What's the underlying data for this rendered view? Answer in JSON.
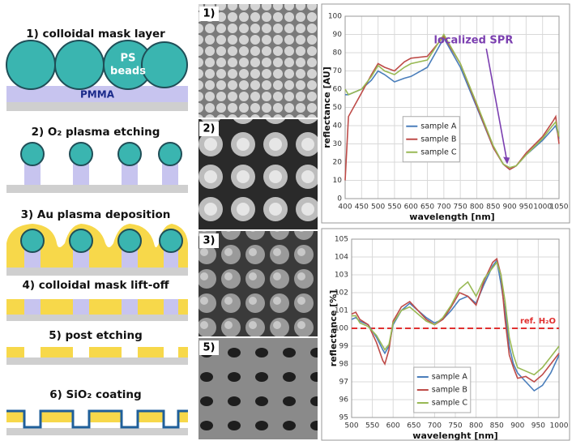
{
  "schematic": {
    "steps": [
      "1) colloidal mask layer",
      "2) O₂ plasma etching",
      "3) Au plasma deposition",
      "4) colloidal mask lift-off",
      "5) post etching",
      "6) SiO₂ coating"
    ],
    "bead_label": [
      "PS",
      "beads"
    ],
    "layer_label": "PMMA"
  },
  "sem_panels": [
    "1)",
    "2)",
    "3)",
    "5)"
  ],
  "chart_data": [
    {
      "type": "line",
      "x_label": "wavelength [nm]",
      "y_label": "reflectance [AU]",
      "annotation": "localized SPR",
      "x": [
        400,
        410,
        450,
        480,
        500,
        520,
        550,
        580,
        600,
        650,
        700,
        750,
        800,
        850,
        880,
        900,
        920,
        950,
        1000,
        1030,
        1040,
        1050
      ],
      "series": [
        {
          "name": "sample A",
          "color": "#4a7ebb",
          "values": [
            57,
            57,
            60,
            65,
            70,
            68,
            64,
            66,
            67,
            72,
            88,
            72,
            50,
            28,
            19,
            16,
            18,
            24,
            32,
            38,
            40,
            33
          ]
        },
        {
          "name": "sample B",
          "color": "#be4b48",
          "values": [
            10,
            45,
            58,
            68,
            74,
            72,
            70,
            75,
            77,
            78,
            89,
            74,
            51,
            28,
            19,
            16,
            18,
            25,
            34,
            42,
            45,
            30
          ]
        },
        {
          "name": "sample C",
          "color": "#98b954",
          "values": [
            60,
            57,
            60,
            67,
            73,
            70,
            68,
            72,
            74,
            76,
            90,
            74,
            52,
            29,
            19,
            17,
            18,
            24,
            33,
            40,
            42,
            34
          ]
        }
      ],
      "xlim": [
        400,
        1050
      ],
      "xticks": [
        400,
        450,
        500,
        550,
        600,
        650,
        700,
        750,
        800,
        850,
        900,
        950,
        1000,
        1050
      ],
      "ylim": [
        0,
        100
      ],
      "yticks": [
        0,
        10,
        20,
        30,
        40,
        50,
        60,
        70,
        80,
        90,
        100
      ],
      "grid": true,
      "legend": "center"
    },
    {
      "type": "line",
      "x_label": "wavelenght [nm]",
      "y_label": "reflectance [%]",
      "x": [
        500,
        510,
        520,
        540,
        560,
        575,
        580,
        590,
        600,
        620,
        640,
        660,
        680,
        700,
        720,
        740,
        760,
        780,
        800,
        820,
        840,
        850,
        860,
        870,
        880,
        890,
        900,
        920,
        940,
        960,
        980,
        1000
      ],
      "series": [
        {
          "name": "sample A",
          "color": "#4a7ebb",
          "values": [
            100.5,
            100.6,
            100.4,
            100.2,
            99.5,
            98.8,
            98.6,
            99.0,
            100.2,
            101.0,
            101.4,
            101.0,
            100.6,
            100.3,
            100.5,
            101.0,
            101.6,
            101.8,
            101.4,
            102.5,
            103.5,
            103.8,
            102.5,
            101,
            99,
            98,
            97.5,
            97,
            96.5,
            96.8,
            97.5,
            98.5
          ]
        },
        {
          "name": "sample B",
          "color": "#be4b48",
          "values": [
            100.8,
            100.9,
            100.5,
            100.2,
            99.2,
            98.2,
            98.0,
            98.8,
            100.4,
            101.2,
            101.5,
            101.0,
            100.5,
            100.2,
            100.5,
            101.2,
            102.0,
            101.8,
            101.3,
            102.7,
            103.7,
            103.9,
            103.0,
            100.5,
            98.5,
            97.8,
            97.2,
            97.3,
            97.0,
            97.4,
            98.0,
            98.6
          ]
        },
        {
          "name": "sample C",
          "color": "#98b954",
          "values": [
            100.7,
            100.7,
            100.3,
            100.1,
            99.6,
            99.0,
            98.8,
            99.1,
            100.3,
            101.0,
            101.2,
            100.8,
            100.4,
            100.2,
            100.6,
            101.3,
            102.2,
            102.6,
            101.8,
            102.8,
            103.4,
            103.7,
            103.0,
            101.5,
            99.5,
            98.5,
            97.8,
            97.6,
            97.4,
            97.8,
            98.4,
            99.0
          ]
        }
      ],
      "reference_line": {
        "value": 100,
        "label": "ref. H₂O",
        "color": "#e03030"
      },
      "xlim": [
        500,
        1000
      ],
      "xticks": [
        500,
        550,
        600,
        650,
        700,
        750,
        800,
        850,
        900,
        950,
        1000
      ],
      "ylim": [
        95,
        105
      ],
      "yticks": [
        95,
        96,
        97,
        98,
        99,
        100,
        101,
        102,
        103,
        104,
        105
      ],
      "grid": true,
      "legend": "lower-left"
    }
  ]
}
